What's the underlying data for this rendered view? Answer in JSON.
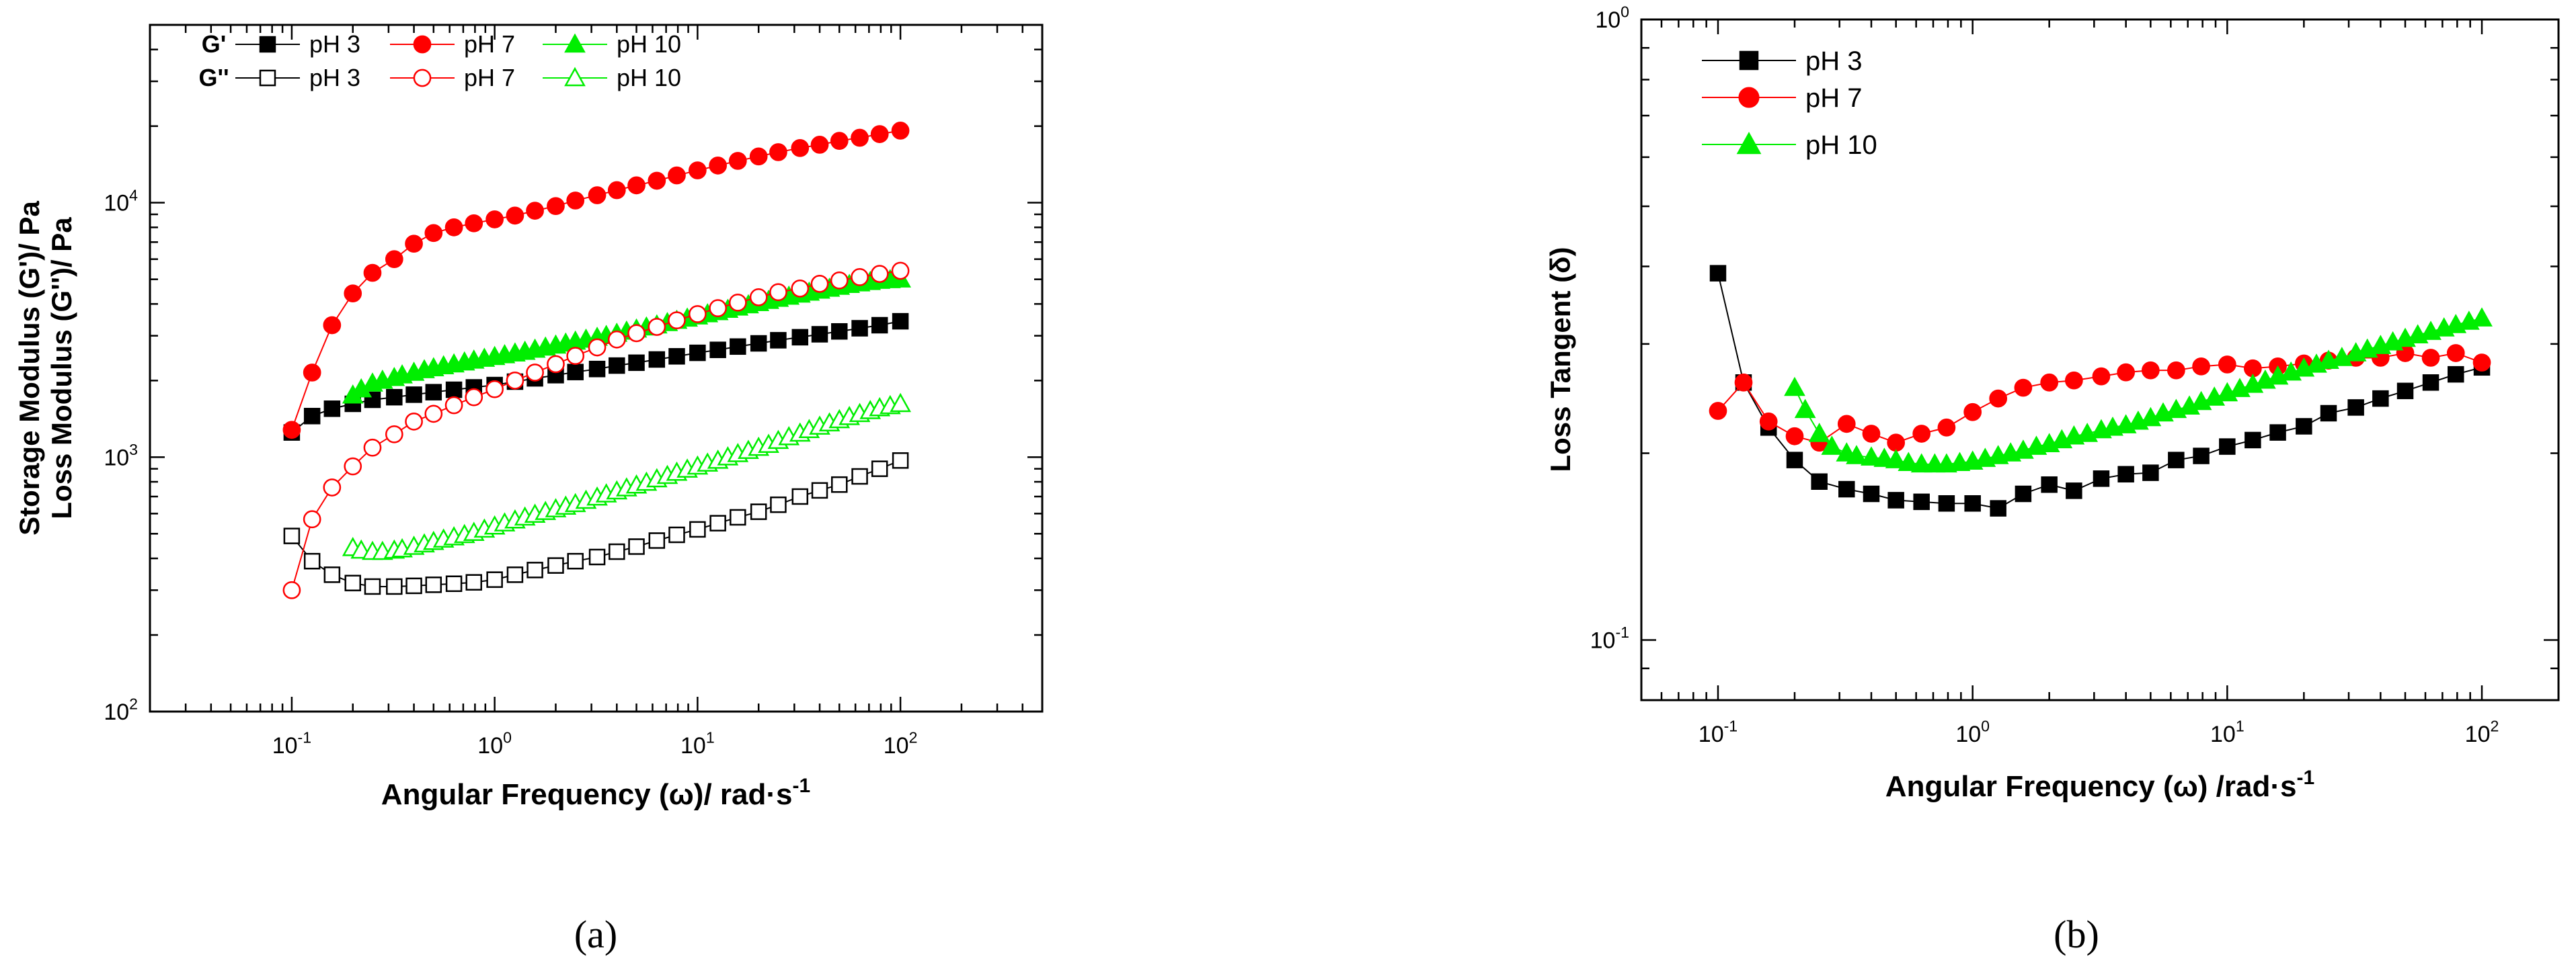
{
  "chart_data": [
    {
      "type": "scatter",
      "panel_label": "(a)",
      "xscale": "log",
      "yscale": "log",
      "xlim": [
        0.02,
        500
      ],
      "ylim": [
        100,
        50000
      ],
      "xlabel": "Angular Frequency (ω)/ rad·s",
      "xlabel_sup": "-1",
      "ylabel_lines": [
        "Storage Modulus (G')/ Pa",
        "Loss Modulus (G'')/ Pa"
      ],
      "x_ticks": [
        {
          "base": "10",
          "exp": "-1",
          "value": 0.1
        },
        {
          "base": "10",
          "exp": "0",
          "value": 1
        },
        {
          "base": "10",
          "exp": "1",
          "value": 10
        },
        {
          "base": "10",
          "exp": "2",
          "value": 100
        }
      ],
      "y_ticks": [
        {
          "base": "10",
          "exp": "2",
          "value": 100
        },
        {
          "base": "10",
          "exp": "3",
          "value": 1000
        },
        {
          "base": "10",
          "exp": "4",
          "value": 10000
        }
      ],
      "legend_rows": [
        {
          "label": "G'",
          "kind": "filled"
        },
        {
          "label": "G''",
          "kind": "open"
        }
      ],
      "series": [
        {
          "name": "pH 3",
          "group": "G'",
          "color": "#000000",
          "marker": "square",
          "fill": "filled",
          "x": [
            0.1,
            0.126,
            0.158,
            0.2,
            0.25,
            0.32,
            0.4,
            0.5,
            0.63,
            0.79,
            1,
            1.26,
            1.58,
            2,
            2.5,
            3.2,
            4,
            5,
            6.3,
            7.9,
            10,
            12.6,
            15.8,
            20,
            25,
            32,
            40,
            50,
            63,
            79,
            100
          ],
          "y": [
            1250,
            1450,
            1550,
            1620,
            1680,
            1720,
            1760,
            1800,
            1840,
            1880,
            1920,
            1980,
            2040,
            2100,
            2160,
            2220,
            2290,
            2350,
            2420,
            2490,
            2570,
            2640,
            2720,
            2800,
            2880,
            2960,
            3040,
            3120,
            3210,
            3300,
            3420
          ]
        },
        {
          "name": "pH 7",
          "group": "G'",
          "color": "#ff0000",
          "marker": "circle",
          "fill": "filled",
          "x": [
            0.1,
            0.126,
            0.158,
            0.2,
            0.25,
            0.32,
            0.4,
            0.5,
            0.63,
            0.79,
            1,
            1.26,
            1.58,
            2,
            2.5,
            3.2,
            4,
            5,
            6.3,
            7.9,
            10,
            12.6,
            15.8,
            20,
            25,
            32,
            40,
            50,
            63,
            79,
            100
          ],
          "y": [
            1280,
            2150,
            3300,
            4400,
            5300,
            6000,
            6900,
            7600,
            8000,
            8300,
            8600,
            8900,
            9300,
            9700,
            10200,
            10700,
            11200,
            11700,
            12200,
            12800,
            13400,
            14000,
            14600,
            15200,
            15800,
            16400,
            16900,
            17500,
            18000,
            18600,
            19200
          ]
        },
        {
          "name": "pH 10",
          "group": "G'",
          "color": "#00ee00",
          "marker": "triangle",
          "fill": "filled",
          "x": [
            0.2,
            0.22,
            0.25,
            0.28,
            0.32,
            0.35,
            0.4,
            0.45,
            0.5,
            0.56,
            0.63,
            0.71,
            0.79,
            0.89,
            1,
            1.12,
            1.26,
            1.41,
            1.58,
            1.78,
            2,
            2.24,
            2.5,
            2.82,
            3.2,
            3.55,
            4,
            4.47,
            5,
            5.6,
            6.3,
            7.1,
            7.9,
            8.9,
            10,
            11.2,
            12.6,
            14.1,
            15.8,
            17.8,
            20,
            22.4,
            25,
            28.2,
            32,
            35.5,
            40,
            44.7,
            50,
            56,
            63,
            71,
            79,
            89,
            100
          ],
          "y": [
            1750,
            1850,
            1950,
            2000,
            2050,
            2100,
            2150,
            2200,
            2240,
            2280,
            2320,
            2360,
            2400,
            2440,
            2480,
            2520,
            2560,
            2600,
            2650,
            2700,
            2750,
            2800,
            2850,
            2900,
            2950,
            3000,
            3060,
            3120,
            3180,
            3240,
            3300,
            3370,
            3440,
            3510,
            3580,
            3650,
            3720,
            3800,
            3880,
            3960,
            4040,
            4120,
            4200,
            4280,
            4360,
            4440,
            4520,
            4600,
            4680,
            4760,
            4830,
            4890,
            4940,
            4970,
            5000
          ]
        },
        {
          "name": "pH 3",
          "group": "G''",
          "color": "#000000",
          "marker": "square",
          "fill": "open",
          "x": [
            0.1,
            0.126,
            0.158,
            0.2,
            0.25,
            0.32,
            0.4,
            0.5,
            0.63,
            0.79,
            1,
            1.26,
            1.58,
            2,
            2.5,
            3.2,
            4,
            5,
            6.3,
            7.9,
            10,
            12.6,
            15.8,
            20,
            25,
            32,
            40,
            50,
            63,
            79,
            100
          ],
          "y": [
            490,
            390,
            345,
            320,
            310,
            310,
            312,
            315,
            318,
            322,
            330,
            345,
            360,
            375,
            390,
            405,
            425,
            445,
            470,
            495,
            520,
            550,
            580,
            610,
            650,
            700,
            740,
            780,
            840,
            900,
            970
          ]
        },
        {
          "name": "pH 7",
          "group": "G''",
          "color": "#ff0000",
          "marker": "circle",
          "fill": "open",
          "x": [
            0.1,
            0.126,
            0.158,
            0.2,
            0.25,
            0.32,
            0.4,
            0.5,
            0.63,
            0.79,
            1,
            1.26,
            1.58,
            2,
            2.5,
            3.2,
            4,
            5,
            6.3,
            7.9,
            10,
            12.6,
            15.8,
            20,
            25,
            32,
            40,
            50,
            63,
            79,
            100
          ],
          "y": [
            300,
            570,
            760,
            920,
            1090,
            1230,
            1380,
            1480,
            1600,
            1720,
            1850,
            2000,
            2150,
            2320,
            2500,
            2700,
            2900,
            3070,
            3250,
            3450,
            3650,
            3850,
            4050,
            4250,
            4450,
            4600,
            4800,
            4950,
            5100,
            5250,
            5400
          ]
        },
        {
          "name": "pH 10",
          "group": "G''",
          "color": "#00ee00",
          "marker": "triangle",
          "fill": "open",
          "x": [
            0.2,
            0.22,
            0.25,
            0.28,
            0.32,
            0.35,
            0.4,
            0.45,
            0.5,
            0.56,
            0.63,
            0.71,
            0.79,
            0.89,
            1,
            1.12,
            1.26,
            1.41,
            1.58,
            1.78,
            2,
            2.24,
            2.5,
            2.82,
            3.2,
            3.55,
            4,
            4.47,
            5,
            5.6,
            6.3,
            7.1,
            7.9,
            8.9,
            10,
            11.2,
            12.6,
            14.1,
            15.8,
            17.8,
            20,
            22.4,
            25,
            28.2,
            32,
            35.5,
            40,
            44.7,
            50,
            56,
            63,
            71,
            79,
            89,
            100
          ],
          "y": [
            440,
            430,
            425,
            425,
            430,
            435,
            445,
            455,
            465,
            475,
            485,
            495,
            505,
            520,
            535,
            550,
            565,
            580,
            595,
            610,
            625,
            640,
            655,
            675,
            695,
            715,
            735,
            755,
            775,
            795,
            820,
            845,
            870,
            895,
            920,
            945,
            970,
            1000,
            1030,
            1060,
            1090,
            1120,
            1160,
            1200,
            1240,
            1280,
            1320,
            1360,
            1400,
            1440,
            1480,
            1520,
            1560,
            1590,
            1620
          ]
        }
      ]
    },
    {
      "type": "scatter",
      "panel_label": "(b)",
      "xscale": "log",
      "yscale": "log",
      "xlim": [
        0.05,
        200
      ],
      "ylim": [
        0.08,
        1.0
      ],
      "xlabel": "Angular Frequency (ω) /rad·s",
      "xlabel_sup": "-1",
      "ylabel": "Loss Tangent (δ)",
      "x_ticks": [
        {
          "base": "10",
          "exp": "-1",
          "value": 0.1
        },
        {
          "base": "10",
          "exp": "0",
          "value": 1
        },
        {
          "base": "10",
          "exp": "1",
          "value": 10
        },
        {
          "base": "10",
          "exp": "2",
          "value": 100
        }
      ],
      "y_ticks": [
        {
          "base": "10",
          "exp": "-1",
          "value": 0.1
        },
        {
          "base": "10",
          "exp": "0",
          "value": 1
        }
      ],
      "series": [
        {
          "name": "pH 3",
          "color": "#000000",
          "marker": "square",
          "x": [
            0.1,
            0.126,
            0.158,
            0.2,
            0.25,
            0.32,
            0.4,
            0.5,
            0.63,
            0.79,
            1,
            1.26,
            1.58,
            2,
            2.5,
            3.2,
            4,
            5,
            6.3,
            7.9,
            10,
            12.6,
            15.8,
            20,
            25,
            32,
            40,
            50,
            63,
            79,
            100
          ],
          "y": [
            0.39,
            0.26,
            0.22,
            0.195,
            0.18,
            0.175,
            0.172,
            0.168,
            0.167,
            0.166,
            0.166,
            0.163,
            0.172,
            0.178,
            0.174,
            0.182,
            0.185,
            0.186,
            0.195,
            0.198,
            0.205,
            0.21,
            0.216,
            0.221,
            0.232,
            0.237,
            0.245,
            0.252,
            0.26,
            0.268,
            0.275
          ]
        },
        {
          "name": "pH 7",
          "color": "#ff0000",
          "marker": "circle",
          "x": [
            0.1,
            0.126,
            0.158,
            0.2,
            0.25,
            0.32,
            0.4,
            0.5,
            0.63,
            0.79,
            1,
            1.26,
            1.58,
            2,
            2.5,
            3.2,
            4,
            5,
            6.3,
            7.9,
            10,
            12.6,
            15.8,
            20,
            25,
            32,
            40,
            50,
            63,
            79,
            100
          ],
          "y": [
            0.234,
            0.26,
            0.225,
            0.213,
            0.208,
            0.223,
            0.215,
            0.208,
            0.215,
            0.22,
            0.233,
            0.245,
            0.255,
            0.26,
            0.262,
            0.266,
            0.27,
            0.272,
            0.272,
            0.276,
            0.278,
            0.274,
            0.276,
            0.279,
            0.282,
            0.285,
            0.285,
            0.29,
            0.285,
            0.29,
            0.28
          ]
        },
        {
          "name": "pH 10",
          "color": "#00ee00",
          "marker": "triangle",
          "x": [
            0.2,
            0.22,
            0.25,
            0.28,
            0.32,
            0.35,
            0.4,
            0.45,
            0.5,
            0.56,
            0.63,
            0.71,
            0.79,
            0.89,
            1,
            1.12,
            1.26,
            1.41,
            1.58,
            1.78,
            2,
            2.24,
            2.5,
            2.82,
            3.2,
            3.55,
            4,
            4.47,
            5,
            5.6,
            6.3,
            7.1,
            7.9,
            8.9,
            10,
            11.2,
            12.6,
            14.1,
            15.8,
            17.8,
            20,
            22.4,
            25,
            28.2,
            32,
            35.5,
            40,
            44.7,
            50,
            56,
            63,
            71,
            79,
            89,
            100
          ],
          "y": [
            0.255,
            0.235,
            0.215,
            0.205,
            0.2,
            0.198,
            0.197,
            0.196,
            0.195,
            0.193,
            0.192,
            0.192,
            0.192,
            0.193,
            0.194,
            0.196,
            0.198,
            0.2,
            0.202,
            0.205,
            0.207,
            0.21,
            0.213,
            0.215,
            0.218,
            0.22,
            0.222,
            0.225,
            0.228,
            0.232,
            0.235,
            0.238,
            0.242,
            0.246,
            0.25,
            0.254,
            0.258,
            0.262,
            0.266,
            0.27,
            0.274,
            0.278,
            0.282,
            0.285,
            0.29,
            0.294,
            0.298,
            0.302,
            0.306,
            0.31,
            0.314,
            0.318,
            0.322,
            0.326,
            0.33
          ]
        }
      ]
    }
  ]
}
